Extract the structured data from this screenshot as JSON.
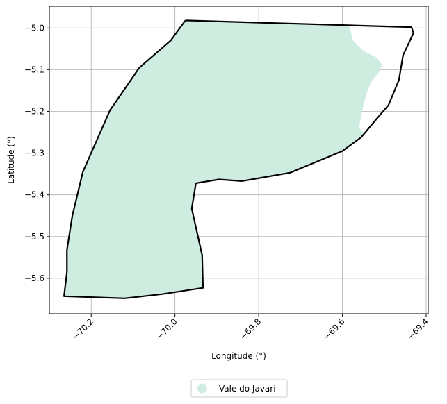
{
  "chart_data": {
    "type": "map",
    "title": "",
    "xlabel": "Longitude (°)",
    "ylabel": "Latitude (°)",
    "xlim": [
      -70.3,
      -69.395
    ],
    "ylim": [
      -5.685,
      -4.948
    ],
    "grid": true,
    "x_ticks": [
      {
        "value": -70.2,
        "label": "−70.2"
      },
      {
        "value": -70.0,
        "label": "−70.0"
      },
      {
        "value": -69.8,
        "label": "−69.8"
      },
      {
        "value": -69.6,
        "label": "−69.6"
      },
      {
        "value": -69.4,
        "label": "−69.4"
      }
    ],
    "y_ticks": [
      {
        "value": -5.0,
        "label": "−5.0"
      },
      {
        "value": -5.1,
        "label": "−5.1"
      },
      {
        "value": -5.2,
        "label": "−5.2"
      },
      {
        "value": -5.3,
        "label": "−5.3"
      },
      {
        "value": -5.4,
        "label": "−5.4"
      },
      {
        "value": -5.5,
        "label": "−5.5"
      },
      {
        "value": -5.6,
        "label": "−5.6"
      }
    ],
    "legend": {
      "placement": "bottom-center",
      "entries": [
        {
          "label": "Vale do Javari",
          "color": "#cfece0"
        }
      ]
    },
    "fill_region": {
      "name": "Vale do Javari",
      "color": "#cfece0",
      "points": [
        [
          -69.975,
          -4.982
        ],
        [
          -69.585,
          -4.995
        ],
        [
          -69.58,
          -5.008
        ],
        [
          -69.575,
          -5.03
        ],
        [
          -69.55,
          -5.055
        ],
        [
          -69.52,
          -5.07
        ],
        [
          -69.505,
          -5.088
        ],
        [
          -69.512,
          -5.105
        ],
        [
          -69.53,
          -5.128
        ],
        [
          -69.54,
          -5.15
        ],
        [
          -69.55,
          -5.185
        ],
        [
          -69.555,
          -5.21
        ],
        [
          -69.56,
          -5.24
        ],
        [
          -69.545,
          -5.255
        ],
        [
          -69.56,
          -5.262
        ],
        [
          -69.6,
          -5.295
        ],
        [
          -69.725,
          -5.347
        ],
        [
          -69.84,
          -5.367
        ],
        [
          -69.895,
          -5.363
        ],
        [
          -69.95,
          -5.372
        ],
        [
          -69.96,
          -5.433
        ],
        [
          -69.935,
          -5.545
        ],
        [
          -69.933,
          -5.623
        ],
        [
          -70.03,
          -5.638
        ],
        [
          -70.12,
          -5.648
        ],
        [
          -70.265,
          -5.643
        ],
        [
          -70.258,
          -5.585
        ],
        [
          -70.258,
          -5.532
        ],
        [
          -70.245,
          -5.45
        ],
        [
          -70.22,
          -5.345
        ],
        [
          -70.155,
          -5.197
        ],
        [
          -70.085,
          -5.095
        ],
        [
          -70.01,
          -5.03
        ]
      ]
    },
    "boundary": {
      "color": "#000000",
      "points": [
        [
          -69.975,
          -4.982
        ],
        [
          -69.435,
          -4.998
        ],
        [
          -69.43,
          -5.012
        ],
        [
          -69.455,
          -5.065
        ],
        [
          -69.465,
          -5.125
        ],
        [
          -69.49,
          -5.185
        ],
        [
          -69.52,
          -5.22
        ],
        [
          -69.555,
          -5.262
        ],
        [
          -69.6,
          -5.295
        ],
        [
          -69.725,
          -5.347
        ],
        [
          -69.84,
          -5.367
        ],
        [
          -69.895,
          -5.363
        ],
        [
          -69.95,
          -5.372
        ],
        [
          -69.96,
          -5.433
        ],
        [
          -69.935,
          -5.545
        ],
        [
          -69.933,
          -5.623
        ],
        [
          -70.03,
          -5.638
        ],
        [
          -70.12,
          -5.648
        ],
        [
          -70.265,
          -5.643
        ],
        [
          -70.258,
          -5.585
        ],
        [
          -70.258,
          -5.532
        ],
        [
          -70.245,
          -5.45
        ],
        [
          -70.22,
          -5.345
        ],
        [
          -70.155,
          -5.197
        ],
        [
          -70.085,
          -5.095
        ],
        [
          -70.01,
          -5.03
        ],
        [
          -69.975,
          -4.982
        ]
      ]
    }
  }
}
